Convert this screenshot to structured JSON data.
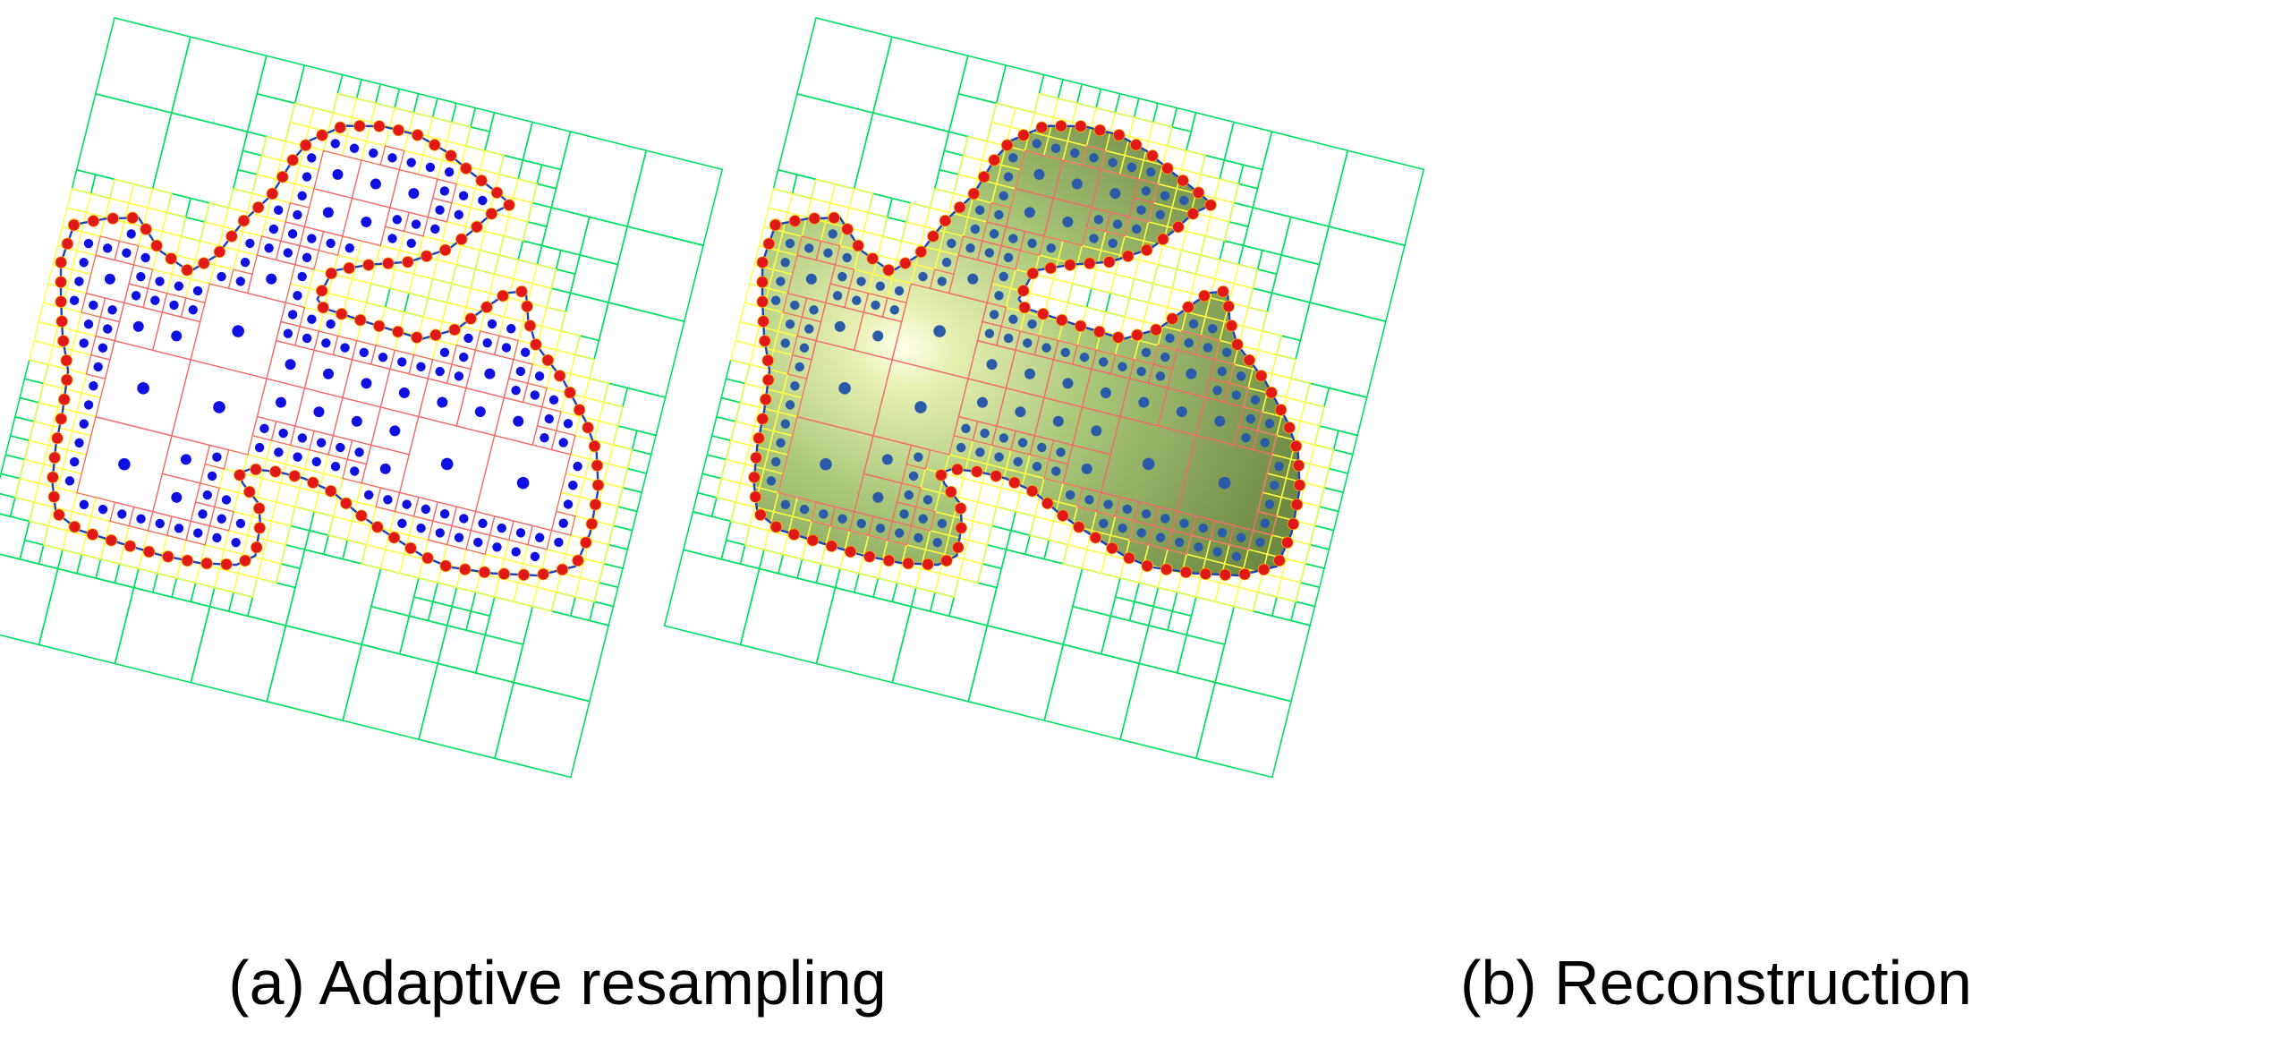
{
  "panels": [
    {
      "id": "a",
      "caption": "(a) Adaptive resampling",
      "shaded": false
    },
    {
      "id": "b",
      "caption": "(b) Reconstruction",
      "shaded": true
    }
  ],
  "colors": {
    "background": "#ffffff",
    "outer_quadtree": "#00e060",
    "boundary_cells": "#ffff40",
    "interior_cells": "#f26a6a",
    "contour_line": "#2040c0",
    "boundary_points": "#e01818",
    "interior_points_a": "#1010e0",
    "interior_points_b": "#2a5aa8",
    "surface_fill": "#9cc468",
    "surface_highlight": "#ffffe8"
  },
  "icons": {
    "boundary_sample": "red-dot",
    "interior_sample": "blue-dot"
  }
}
